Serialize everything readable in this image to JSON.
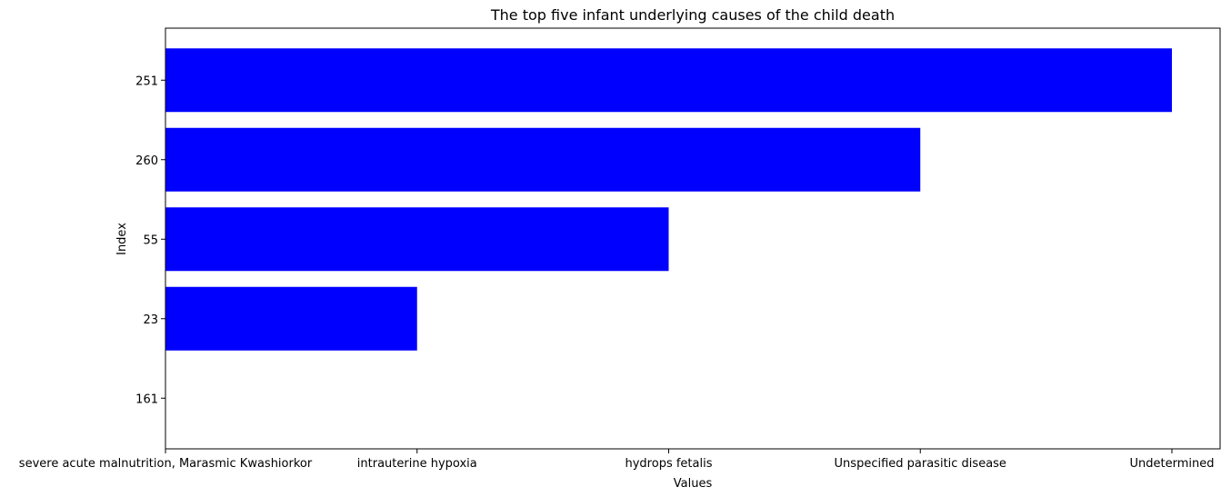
{
  "chart_data": {
    "type": "bar",
    "orientation": "horizontal",
    "title": "The top five infant underlying causes of the child death",
    "xlabel": "Values",
    "ylabel": "Index",
    "categories": [
      "251",
      "260",
      "55",
      "23",
      "161"
    ],
    "x_tick_labels": [
      "severe acute malnutrition, Marasmic Kwashiorkor",
      "intrauterine hypoxia",
      "hydrops fetalis",
      "Unspecified parasitic disease",
      "Undetermined"
    ],
    "values": [
      4,
      3,
      2,
      1,
      0
    ],
    "bar_color": "#0000ff",
    "grid": false,
    "legend": "none"
  }
}
